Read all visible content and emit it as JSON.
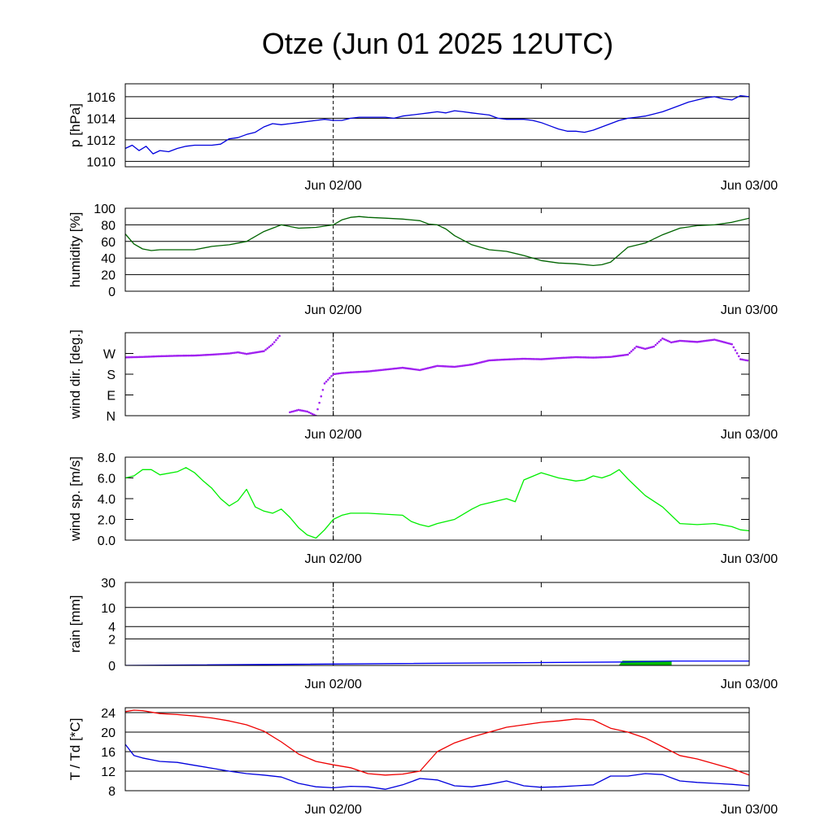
{
  "title": "Otze (Jun 01 2025 12UTC)",
  "chart_data": [
    {
      "type": "line",
      "ylabel": "p [hPa]",
      "ylim": [
        1009.5,
        1017.2
      ],
      "yticks": [
        1010,
        1012,
        1014,
        1016
      ],
      "ytick_labels": [
        "1010",
        "1012",
        "1014",
        "1016"
      ],
      "grid": true,
      "x_hours": [
        0,
        36
      ],
      "x_tick_hours": [
        12,
        24,
        36
      ],
      "x_tick_labels": [
        "Jun 02/00",
        "Jun 03/00"
      ],
      "x_tick_label_hours": [
        12,
        36
      ],
      "marker_hour": 12,
      "series": [
        {
          "color": "#0000dd",
          "x": [
            0,
            0.4,
            0.8,
            1.2,
            1.6,
            2,
            2.5,
            3,
            3.5,
            4,
            4.5,
            5,
            5.5,
            6,
            6.5,
            7,
            7.5,
            8,
            8.5,
            9,
            9.5,
            10,
            10.5,
            11,
            11.5,
            12,
            12.5,
            13,
            13.5,
            14,
            14.5,
            15,
            15.5,
            16,
            16.5,
            17,
            17.5,
            18,
            18.5,
            19,
            19.5,
            20,
            20.5,
            21,
            21.5,
            22,
            22.5,
            23,
            23.5,
            24,
            24.5,
            25,
            25.5,
            26,
            26.5,
            27,
            27.5,
            28,
            28.5,
            29,
            29.5,
            30,
            30.5,
            31,
            31.5,
            32,
            32.5,
            33,
            33.5,
            34,
            34.5,
            35,
            35.5,
            36
          ],
          "values": [
            1011.2,
            1011.5,
            1011.0,
            1011.4,
            1010.7,
            1011.0,
            1010.9,
            1011.2,
            1011.4,
            1011.5,
            1011.5,
            1011.5,
            1011.6,
            1012.1,
            1012.2,
            1012.5,
            1012.7,
            1013.2,
            1013.5,
            1013.4,
            1013.5,
            1013.6,
            1013.7,
            1013.8,
            1013.9,
            1013.8,
            1013.8,
            1014.0,
            1014.1,
            1014.1,
            1014.1,
            1014.1,
            1014.0,
            1014.2,
            1014.3,
            1014.4,
            1014.5,
            1014.6,
            1014.5,
            1014.7,
            1014.6,
            1014.5,
            1014.4,
            1014.3,
            1014.0,
            1013.9,
            1013.9,
            1013.9,
            1013.8,
            1013.6,
            1013.3,
            1013.0,
            1012.8,
            1012.8,
            1012.7,
            1012.9,
            1013.2,
            1013.5,
            1013.8,
            1014.0,
            1014.1,
            1014.2,
            1014.4,
            1014.6,
            1014.9,
            1015.2,
            1015.5,
            1015.7,
            1015.9,
            1016.0,
            1015.8,
            1015.7,
            1016.1,
            1016.0
          ]
        }
      ]
    },
    {
      "type": "line",
      "ylabel": "humidity [%]",
      "ylim": [
        0,
        100
      ],
      "yticks": [
        0,
        20,
        40,
        60,
        80,
        100
      ],
      "ytick_labels": [
        "0",
        "20",
        "40",
        "60",
        "80",
        "100"
      ],
      "grid": true,
      "x_hours": [
        0,
        36
      ],
      "x_tick_hours": [
        12,
        24,
        36
      ],
      "x_tick_labels": [
        "Jun 02/00",
        "Jun 03/00"
      ],
      "x_tick_label_hours": [
        12,
        36
      ],
      "marker_hour": 12,
      "series": [
        {
          "color": "#006400",
          "x": [
            0,
            0.5,
            1,
            1.5,
            2,
            3,
            4,
            5,
            6,
            7,
            8,
            9,
            10,
            11,
            12,
            12.5,
            13,
            13.5,
            14,
            15,
            16,
            17,
            17.5,
            18,
            18.5,
            19,
            20,
            21,
            22,
            23,
            24,
            25,
            26,
            27,
            27.5,
            28,
            29,
            30,
            31,
            32,
            33,
            34,
            35,
            36
          ],
          "values": [
            69,
            57,
            51,
            49,
            50,
            50,
            50,
            54,
            56,
            60,
            72,
            80,
            76,
            77,
            80,
            86,
            89,
            90,
            89,
            88,
            87,
            85,
            81,
            80,
            75,
            67,
            56,
            50,
            48,
            43,
            37,
            34,
            33,
            31,
            32,
            35,
            53,
            58,
            68,
            76,
            79,
            80,
            83,
            88
          ]
        }
      ]
    },
    {
      "type": "scatter",
      "ylabel": "wind dir. [deg.]",
      "ylim": [
        0,
        360
      ],
      "yticks": [
        0,
        90,
        180,
        270
      ],
      "ytick_labels": [
        "N",
        "E",
        "S",
        "W"
      ],
      "grid": false,
      "x_hours": [
        0,
        36
      ],
      "x_tick_hours": [
        12,
        24,
        36
      ],
      "x_tick_labels": [
        "Jun 02/00",
        "Jun 03/00"
      ],
      "x_tick_label_hours": [
        12,
        36
      ],
      "marker_hour": 12,
      "series": [
        {
          "color": "#a020f0",
          "x": [
            0,
            1,
            2,
            3,
            4,
            5,
            6,
            6.5,
            7,
            8,
            8.5,
            9,
            9.5,
            10,
            10.5,
            11,
            11.5,
            12,
            12.5,
            13,
            14,
            15,
            16,
            17,
            18,
            19,
            20,
            21,
            22,
            23,
            24,
            25,
            26,
            27,
            28,
            29,
            29.5,
            30,
            30.5,
            31,
            31.5,
            32,
            33,
            34,
            35,
            35.5,
            36
          ],
          "values": [
            253,
            255,
            258,
            260,
            261,
            265,
            270,
            275,
            268,
            280,
            310,
            355,
            15,
            25,
            18,
            0,
            140,
            180,
            185,
            188,
            192,
            200,
            208,
            198,
            216,
            212,
            222,
            240,
            244,
            247,
            245,
            250,
            254,
            252,
            255,
            265,
            300,
            290,
            300,
            335,
            318,
            325,
            320,
            330,
            310,
            245,
            238
          ]
        }
      ]
    },
    {
      "type": "line",
      "ylabel": "wind sp. [m/s]",
      "ylim": [
        0,
        8
      ],
      "yticks": [
        0,
        2,
        4,
        6,
        8
      ],
      "ytick_labels": [
        "0.0",
        "2.0",
        "4.0",
        "6.0",
        "8.0"
      ],
      "grid": false,
      "x_hours": [
        0,
        36
      ],
      "x_tick_hours": [
        12,
        24,
        36
      ],
      "x_tick_labels": [
        "Jun 02/00",
        "Jun 03/00"
      ],
      "x_tick_label_hours": [
        12,
        36
      ],
      "marker_hour": 12,
      "series": [
        {
          "color": "#00ee00",
          "x": [
            0,
            0.5,
            1,
            1.5,
            2,
            3,
            3.5,
            4,
            4.5,
            5,
            5.5,
            6,
            6.5,
            7,
            7.5,
            8,
            8.5,
            9,
            9.5,
            10,
            10.5,
            11,
            11.5,
            12,
            12.5,
            13,
            14,
            15,
            16,
            16.5,
            17,
            17.5,
            18,
            19,
            20,
            20.5,
            21,
            22,
            22.5,
            23,
            24,
            25,
            26,
            26.5,
            27,
            27.5,
            28,
            28.5,
            29,
            29.5,
            30,
            31,
            32,
            33,
            34,
            35,
            35.5,
            36
          ],
          "values": [
            6.0,
            6.2,
            6.8,
            6.8,
            6.3,
            6.6,
            7.0,
            6.5,
            5.7,
            5.0,
            4.0,
            3.3,
            3.8,
            4.9,
            3.2,
            2.8,
            2.6,
            3.0,
            2.2,
            1.2,
            0.5,
            0.2,
            1.0,
            2.0,
            2.4,
            2.6,
            2.6,
            2.5,
            2.4,
            1.8,
            1.5,
            1.3,
            1.6,
            2.0,
            3.0,
            3.4,
            3.6,
            4.0,
            3.7,
            5.8,
            6.5,
            6.0,
            5.7,
            5.8,
            6.2,
            6.0,
            6.3,
            6.8,
            5.9,
            5.1,
            4.3,
            3.2,
            1.6,
            1.5,
            1.6,
            1.3,
            1.0,
            0.9
          ]
        }
      ]
    },
    {
      "type": "area",
      "ylabel": "rain [mm]",
      "ylim": [
        0,
        30
      ],
      "yticks": [
        0,
        2,
        4,
        10,
        30
      ],
      "ytick_labels": [
        "0",
        "2",
        "4",
        "10",
        "30"
      ],
      "grid": true,
      "x_hours": [
        0,
        36
      ],
      "x_tick_hours": [
        12,
        24,
        36
      ],
      "x_tick_labels": [
        "Jun 02/00",
        "Jun 03/00"
      ],
      "x_tick_label_hours": [
        12,
        36
      ],
      "marker_hour": 12,
      "series": [
        {
          "color": "#00bb00",
          "x": [
            28.5,
            28.7,
            31.5,
            31.5
          ],
          "values": [
            0,
            0.2,
            0.2,
            0
          ]
        },
        {
          "color": "#0000ff",
          "x": [
            0,
            28.7,
            31.5,
            36
          ],
          "values": [
            0,
            0.15,
            0.2,
            0.2
          ]
        }
      ]
    },
    {
      "type": "line",
      "ylabel": "T / Td [*C]",
      "ylim": [
        8,
        25
      ],
      "yticks": [
        8,
        12,
        16,
        20,
        24
      ],
      "ytick_labels": [
        "8",
        "12",
        "16",
        "20",
        "24"
      ],
      "grid": true,
      "x_hours": [
        0,
        36
      ],
      "x_tick_hours": [
        12,
        24,
        36
      ],
      "x_tick_labels": [
        "Jun 02/00",
        "Jun 03/00"
      ],
      "x_tick_label_hours": [
        12,
        36
      ],
      "marker_hour": 12,
      "series": [
        {
          "color": "#ee0000",
          "x": [
            0,
            0.5,
            1,
            2,
            3,
            4,
            5,
            6,
            7,
            8,
            9,
            10,
            11,
            12,
            13,
            14,
            15,
            16,
            17,
            18,
            19,
            20,
            21,
            22,
            23,
            24,
            25,
            26,
            27,
            28,
            29,
            30,
            31,
            32,
            33,
            34,
            35,
            36
          ],
          "values": [
            24.2,
            24.5,
            24.4,
            23.8,
            23.6,
            23.3,
            22.9,
            22.3,
            21.5,
            20.2,
            18.0,
            15.5,
            14.0,
            13.3,
            12.7,
            11.5,
            11.2,
            11.4,
            12.0,
            16.0,
            17.8,
            19.0,
            20.0,
            21.0,
            21.5,
            22.0,
            22.3,
            22.7,
            22.5,
            20.8,
            20.0,
            18.8,
            17.0,
            15.2,
            14.5,
            13.5,
            12.5,
            11.2
          ]
        },
        {
          "color": "#0000dd",
          "x": [
            0,
            0.5,
            1,
            2,
            3,
            4,
            5,
            6,
            7,
            8,
            9,
            10,
            11,
            12,
            13,
            14,
            15,
            16,
            17,
            18,
            19,
            20,
            21,
            22,
            23,
            24,
            25,
            26,
            27,
            28,
            29,
            30,
            31,
            32,
            33,
            34,
            35,
            36
          ],
          "values": [
            17.5,
            15.2,
            14.7,
            14.0,
            13.8,
            13.2,
            12.6,
            12.0,
            11.5,
            11.2,
            10.8,
            9.5,
            8.8,
            8.6,
            8.9,
            8.8,
            8.3,
            9.2,
            10.5,
            10.2,
            9.0,
            8.8,
            9.3,
            10.0,
            9.0,
            8.7,
            8.8,
            9.0,
            9.2,
            11.0,
            11.0,
            11.5,
            11.3,
            10.0,
            9.7,
            9.5,
            9.3,
            9.0
          ]
        }
      ]
    }
  ]
}
